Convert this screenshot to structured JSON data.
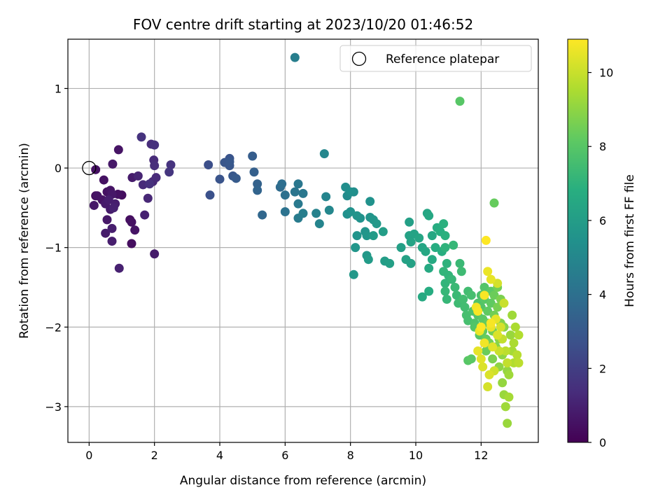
{
  "chart_data": {
    "type": "scatter",
    "title": "FOV centre drift starting at 2023/10/20 01:46:52",
    "xlabel": "Angular distance from reference (arcmin)",
    "ylabel": "Rotation from reference (arcmin)",
    "xlim": [
      -0.65,
      13.75
    ],
    "ylim": [
      -3.45,
      1.62
    ],
    "xticks": [
      0,
      2,
      4,
      6,
      8,
      10,
      12
    ],
    "yticks": [
      -3,
      -2,
      -1,
      0,
      1
    ],
    "grid": true,
    "legend": {
      "placement": "top-right",
      "entries": [
        "Reference platepar"
      ]
    },
    "reference_point": {
      "x": 0,
      "y": 0,
      "label": "Reference platepar"
    },
    "colorbar": {
      "label": "Hours from first FF file",
      "range": [
        0,
        10.9
      ],
      "ticks": [
        0,
        2,
        4,
        6,
        8,
        10
      ],
      "colormap": "viridis"
    },
    "points": [
      {
        "x": 0.2,
        "y": -0.02,
        "c": 0.5
      },
      {
        "x": 0.2,
        "y": -0.35,
        "c": 0.4
      },
      {
        "x": 0.25,
        "y": -0.35,
        "c": 0.6
      },
      {
        "x": 0.15,
        "y": -0.47,
        "c": 0.7
      },
      {
        "x": 0.45,
        "y": -0.15,
        "c": 0.5
      },
      {
        "x": 0.4,
        "y": -0.4,
        "c": 0.6
      },
      {
        "x": 0.55,
        "y": -0.3,
        "c": 0.5
      },
      {
        "x": 0.5,
        "y": -0.45,
        "c": 0.8
      },
      {
        "x": 0.6,
        "y": -0.4,
        "c": 0.9
      },
      {
        "x": 0.7,
        "y": -0.33,
        "c": 0.7
      },
      {
        "x": 0.65,
        "y": -0.52,
        "c": 0.8
      },
      {
        "x": 0.75,
        "y": -0.5,
        "c": 1.0
      },
      {
        "x": 0.8,
        "y": -0.45,
        "c": 0.9
      },
      {
        "x": 0.55,
        "y": -0.65,
        "c": 0.7
      },
      {
        "x": 0.5,
        "y": -0.82,
        "c": 0.8
      },
      {
        "x": 0.7,
        "y": -0.76,
        "c": 0.9
      },
      {
        "x": 0.7,
        "y": -0.92,
        "c": 0.9
      },
      {
        "x": 0.65,
        "y": -0.28,
        "c": 0.6
      },
      {
        "x": 0.72,
        "y": 0.05,
        "c": 0.7
      },
      {
        "x": 0.9,
        "y": 0.23,
        "c": 0.6
      },
      {
        "x": 0.88,
        "y": -0.33,
        "c": 0.5
      },
      {
        "x": 1.0,
        "y": -0.34,
        "c": 0.4
      },
      {
        "x": 0.92,
        "y": -1.26,
        "c": 1.0
      },
      {
        "x": 1.25,
        "y": -0.65,
        "c": 0.4
      },
      {
        "x": 1.3,
        "y": -0.68,
        "c": 0.5
      },
      {
        "x": 1.3,
        "y": -0.95,
        "c": 0.4
      },
      {
        "x": 1.4,
        "y": -0.78,
        "c": 0.6
      },
      {
        "x": 1.32,
        "y": -0.12,
        "c": 0.8
      },
      {
        "x": 1.5,
        "y": -0.1,
        "c": 1.1
      },
      {
        "x": 1.6,
        "y": 0.39,
        "c": 1.6
      },
      {
        "x": 1.65,
        "y": -0.21,
        "c": 1.3
      },
      {
        "x": 1.7,
        "y": -0.59,
        "c": 1.0
      },
      {
        "x": 1.8,
        "y": -0.38,
        "c": 1.2
      },
      {
        "x": 1.85,
        "y": -0.2,
        "c": 1.5
      },
      {
        "x": 1.9,
        "y": 0.3,
        "c": 1.4
      },
      {
        "x": 2.0,
        "y": 0.29,
        "c": 1.5
      },
      {
        "x": 1.98,
        "y": 0.1,
        "c": 1.3
      },
      {
        "x": 2.0,
        "y": 0.03,
        "c": 1.4
      },
      {
        "x": 1.95,
        "y": -0.17,
        "c": 1.2
      },
      {
        "x": 2.05,
        "y": -0.12,
        "c": 1.3
      },
      {
        "x": 2.0,
        "y": -1.08,
        "c": 0.8
      },
      {
        "x": 2.45,
        "y": -0.05,
        "c": 1.7
      },
      {
        "x": 2.5,
        "y": 0.04,
        "c": 1.6
      },
      {
        "x": 3.65,
        "y": 0.04,
        "c": 2.6
      },
      {
        "x": 3.7,
        "y": -0.34,
        "c": 2.7
      },
      {
        "x": 4.0,
        "y": -0.14,
        "c": 2.8
      },
      {
        "x": 4.15,
        "y": 0.07,
        "c": 2.9
      },
      {
        "x": 4.3,
        "y": 0.12,
        "c": 2.8
      },
      {
        "x": 4.3,
        "y": 0.08,
        "c": 3.0
      },
      {
        "x": 4.3,
        "y": 0.03,
        "c": 2.9
      },
      {
        "x": 4.4,
        "y": -0.1,
        "c": 3.0
      },
      {
        "x": 4.5,
        "y": -0.13,
        "c": 3.1
      },
      {
        "x": 5.0,
        "y": 0.15,
        "c": 3.2
      },
      {
        "x": 5.05,
        "y": -0.05,
        "c": 3.3
      },
      {
        "x": 5.15,
        "y": -0.2,
        "c": 3.4
      },
      {
        "x": 5.15,
        "y": -0.28,
        "c": 3.5
      },
      {
        "x": 5.3,
        "y": -0.59,
        "c": 3.6
      },
      {
        "x": 5.9,
        "y": -0.2,
        "c": 3.9
      },
      {
        "x": 5.85,
        "y": -0.24,
        "c": 3.8
      },
      {
        "x": 6.0,
        "y": -0.34,
        "c": 4.0
      },
      {
        "x": 6.0,
        "y": -0.55,
        "c": 4.1
      },
      {
        "x": 6.3,
        "y": 1.39,
        "c": 4.6
      },
      {
        "x": 6.3,
        "y": -0.3,
        "c": 4.2
      },
      {
        "x": 6.4,
        "y": -0.2,
        "c": 4.3
      },
      {
        "x": 6.4,
        "y": -0.45,
        "c": 4.4
      },
      {
        "x": 6.4,
        "y": -0.63,
        "c": 4.5
      },
      {
        "x": 6.55,
        "y": -0.32,
        "c": 4.3
      },
      {
        "x": 6.55,
        "y": -0.57,
        "c": 4.6
      },
      {
        "x": 6.95,
        "y": -0.57,
        "c": 4.8
      },
      {
        "x": 7.05,
        "y": -0.7,
        "c": 4.9
      },
      {
        "x": 7.2,
        "y": 0.18,
        "c": 5.0
      },
      {
        "x": 7.25,
        "y": -0.36,
        "c": 4.9
      },
      {
        "x": 7.35,
        "y": -0.53,
        "c": 5.0
      },
      {
        "x": 7.85,
        "y": -0.24,
        "c": 5.3
      },
      {
        "x": 7.9,
        "y": -0.35,
        "c": 5.2
      },
      {
        "x": 8.0,
        "y": -0.3,
        "c": 5.4
      },
      {
        "x": 8.1,
        "y": -0.3,
        "c": 5.3
      },
      {
        "x": 7.9,
        "y": -0.58,
        "c": 5.4
      },
      {
        "x": 8.0,
        "y": -0.55,
        "c": 5.5
      },
      {
        "x": 8.2,
        "y": -0.6,
        "c": 5.6
      },
      {
        "x": 8.3,
        "y": -0.63,
        "c": 5.5
      },
      {
        "x": 8.2,
        "y": -0.85,
        "c": 5.6
      },
      {
        "x": 8.15,
        "y": -1.0,
        "c": 5.7
      },
      {
        "x": 8.1,
        "y": -1.34,
        "c": 5.8
      },
      {
        "x": 8.45,
        "y": -0.8,
        "c": 5.6
      },
      {
        "x": 8.5,
        "y": -0.85,
        "c": 5.7
      },
      {
        "x": 8.5,
        "y": -1.1,
        "c": 5.8
      },
      {
        "x": 8.55,
        "y": -1.15,
        "c": 5.9
      },
      {
        "x": 8.6,
        "y": -0.42,
        "c": 5.5
      },
      {
        "x": 8.6,
        "y": -0.62,
        "c": 5.6
      },
      {
        "x": 8.7,
        "y": -0.65,
        "c": 5.7
      },
      {
        "x": 8.8,
        "y": -0.7,
        "c": 5.8
      },
      {
        "x": 8.7,
        "y": -0.85,
        "c": 5.9
      },
      {
        "x": 9.0,
        "y": -0.8,
        "c": 6.0
      },
      {
        "x": 9.05,
        "y": -1.17,
        "c": 6.0
      },
      {
        "x": 9.2,
        "y": -1.2,
        "c": 6.1
      },
      {
        "x": 9.55,
        "y": -1.0,
        "c": 6.1
      },
      {
        "x": 9.7,
        "y": -1.15,
        "c": 6.2
      },
      {
        "x": 9.85,
        "y": -1.2,
        "c": 6.2
      },
      {
        "x": 9.8,
        "y": -0.68,
        "c": 6.1
      },
      {
        "x": 9.8,
        "y": -0.85,
        "c": 6.2
      },
      {
        "x": 9.85,
        "y": -0.93,
        "c": 6.3
      },
      {
        "x": 9.95,
        "y": -0.83,
        "c": 6.3
      },
      {
        "x": 10.1,
        "y": -0.88,
        "c": 6.4
      },
      {
        "x": 10.2,
        "y": -1.0,
        "c": 6.4
      },
      {
        "x": 10.3,
        "y": -1.05,
        "c": 6.5
      },
      {
        "x": 10.35,
        "y": -0.57,
        "c": 6.4
      },
      {
        "x": 10.4,
        "y": -0.6,
        "c": 6.5
      },
      {
        "x": 10.5,
        "y": -0.85,
        "c": 6.5
      },
      {
        "x": 10.4,
        "y": -1.26,
        "c": 6.6
      },
      {
        "x": 10.2,
        "y": -1.62,
        "c": 6.6
      },
      {
        "x": 10.4,
        "y": -1.55,
        "c": 6.7
      },
      {
        "x": 10.5,
        "y": -1.15,
        "c": 6.6
      },
      {
        "x": 10.6,
        "y": -1.0,
        "c": 6.7
      },
      {
        "x": 10.65,
        "y": -0.75,
        "c": 6.7
      },
      {
        "x": 10.75,
        "y": -0.8,
        "c": 6.8
      },
      {
        "x": 10.8,
        "y": -1.05,
        "c": 6.8
      },
      {
        "x": 10.85,
        "y": -0.7,
        "c": 6.9
      },
      {
        "x": 10.9,
        "y": -0.85,
        "c": 6.9
      },
      {
        "x": 10.9,
        "y": -1.0,
        "c": 7.0
      },
      {
        "x": 10.95,
        "y": -1.2,
        "c": 7.0
      },
      {
        "x": 10.85,
        "y": -1.3,
        "c": 7.1
      },
      {
        "x": 10.9,
        "y": -1.45,
        "c": 7.1
      },
      {
        "x": 10.9,
        "y": -1.55,
        "c": 7.2
      },
      {
        "x": 10.95,
        "y": -1.65,
        "c": 7.2
      },
      {
        "x": 11.0,
        "y": -1.35,
        "c": 7.1
      },
      {
        "x": 11.1,
        "y": -1.4,
        "c": 7.2
      },
      {
        "x": 11.15,
        "y": -0.97,
        "c": 7.2
      },
      {
        "x": 11.2,
        "y": -1.5,
        "c": 7.3
      },
      {
        "x": 11.25,
        "y": -1.6,
        "c": 7.3
      },
      {
        "x": 11.3,
        "y": -1.7,
        "c": 7.4
      },
      {
        "x": 11.35,
        "y": -1.2,
        "c": 7.3
      },
      {
        "x": 11.4,
        "y": -1.3,
        "c": 7.4
      },
      {
        "x": 11.45,
        "y": -1.65,
        "c": 7.5
      },
      {
        "x": 11.5,
        "y": -1.75,
        "c": 7.5
      },
      {
        "x": 11.55,
        "y": -1.85,
        "c": 7.6
      },
      {
        "x": 11.6,
        "y": -1.55,
        "c": 7.5
      },
      {
        "x": 11.6,
        "y": -1.92,
        "c": 7.6
      },
      {
        "x": 11.35,
        "y": 0.84,
        "c": 8.0
      },
      {
        "x": 11.6,
        "y": -2.42,
        "c": 8.0
      },
      {
        "x": 11.7,
        "y": -2.4,
        "c": 8.1
      },
      {
        "x": 11.7,
        "y": -1.6,
        "c": 7.6
      },
      {
        "x": 11.75,
        "y": -1.8,
        "c": 7.7
      },
      {
        "x": 11.8,
        "y": -1.95,
        "c": 7.8
      },
      {
        "x": 11.8,
        "y": -2.0,
        "c": 7.9
      },
      {
        "x": 11.9,
        "y": -1.7,
        "c": 7.8
      },
      {
        "x": 11.9,
        "y": -1.85,
        "c": 7.9
      },
      {
        "x": 11.95,
        "y": -2.1,
        "c": 8.0
      },
      {
        "x": 12.0,
        "y": -1.6,
        "c": 7.7
      },
      {
        "x": 12.0,
        "y": -1.75,
        "c": 7.9
      },
      {
        "x": 12.05,
        "y": -1.9,
        "c": 8.1
      },
      {
        "x": 12.05,
        "y": -2.05,
        "c": 8.2
      },
      {
        "x": 12.1,
        "y": -1.5,
        "c": 7.9
      },
      {
        "x": 12.1,
        "y": -1.65,
        "c": 8.0
      },
      {
        "x": 12.15,
        "y": -2.15,
        "c": 8.3
      },
      {
        "x": 12.15,
        "y": -2.3,
        "c": 8.4
      },
      {
        "x": 12.2,
        "y": -1.8,
        "c": 8.2
      },
      {
        "x": 12.2,
        "y": -1.95,
        "c": 8.3
      },
      {
        "x": 12.25,
        "y": -2.2,
        "c": 8.5
      },
      {
        "x": 12.3,
        "y": -1.55,
        "c": 8.1
      },
      {
        "x": 12.3,
        "y": -1.7,
        "c": 8.2
      },
      {
        "x": 12.35,
        "y": -2.05,
        "c": 8.6
      },
      {
        "x": 12.35,
        "y": -2.4,
        "c": 8.7
      },
      {
        "x": 12.4,
        "y": -1.6,
        "c": 8.4
      },
      {
        "x": 12.4,
        "y": -1.85,
        "c": 8.5
      },
      {
        "x": 12.45,
        "y": -2.25,
        "c": 8.8
      },
      {
        "x": 12.4,
        "y": -0.44,
        "c": 8.3
      },
      {
        "x": 12.5,
        "y": -1.5,
        "c": 8.5
      },
      {
        "x": 12.5,
        "y": -1.75,
        "c": 8.6
      },
      {
        "x": 12.55,
        "y": -2.15,
        "c": 8.9
      },
      {
        "x": 12.55,
        "y": -2.5,
        "c": 9.0
      },
      {
        "x": 12.6,
        "y": -1.65,
        "c": 8.7
      },
      {
        "x": 12.6,
        "y": -1.95,
        "c": 8.8
      },
      {
        "x": 12.65,
        "y": -2.35,
        "c": 9.0
      },
      {
        "x": 12.65,
        "y": -2.7,
        "c": 9.1
      },
      {
        "x": 12.7,
        "y": -2.0,
        "c": 8.9
      },
      {
        "x": 12.7,
        "y": -2.85,
        "c": 9.2
      },
      {
        "x": 12.75,
        "y": -3.0,
        "c": 9.3
      },
      {
        "x": 12.8,
        "y": -3.21,
        "c": 9.2
      },
      {
        "x": 12.8,
        "y": -2.55,
        "c": 9.1
      },
      {
        "x": 12.85,
        "y": -2.6,
        "c": 9.3
      },
      {
        "x": 12.85,
        "y": -2.88,
        "c": 9.4
      },
      {
        "x": 12.9,
        "y": -2.1,
        "c": 9.2
      },
      {
        "x": 12.95,
        "y": -1.85,
        "c": 9.3
      },
      {
        "x": 12.95,
        "y": -2.3,
        "c": 9.4
      },
      {
        "x": 13.0,
        "y": -2.2,
        "c": 9.5
      },
      {
        "x": 13.0,
        "y": -2.45,
        "c": 9.6
      },
      {
        "x": 13.05,
        "y": -2.0,
        "c": 9.5
      },
      {
        "x": 13.1,
        "y": -2.35,
        "c": 9.7
      },
      {
        "x": 13.15,
        "y": -2.45,
        "c": 9.8
      },
      {
        "x": 13.15,
        "y": -2.1,
        "c": 9.6
      },
      {
        "x": 11.85,
        "y": -1.75,
        "c": 10.7
      },
      {
        "x": 11.9,
        "y": -1.8,
        "c": 10.8
      },
      {
        "x": 11.95,
        "y": -2.05,
        "c": 10.6
      },
      {
        "x": 11.9,
        "y": -2.3,
        "c": 10.5
      },
      {
        "x": 12.0,
        "y": -2.4,
        "c": 10.4
      },
      {
        "x": 12.05,
        "y": -2.5,
        "c": 10.3
      },
      {
        "x": 12.1,
        "y": -2.2,
        "c": 10.7
      },
      {
        "x": 12.15,
        "y": -0.91,
        "c": 10.9
      },
      {
        "x": 12.2,
        "y": -1.3,
        "c": 10.6
      },
      {
        "x": 12.2,
        "y": -2.75,
        "c": 10.2
      },
      {
        "x": 12.25,
        "y": -2.6,
        "c": 10.3
      },
      {
        "x": 12.3,
        "y": -1.4,
        "c": 10.5
      },
      {
        "x": 12.3,
        "y": -2.0,
        "c": 10.6
      },
      {
        "x": 12.35,
        "y": -2.25,
        "c": 10.4
      },
      {
        "x": 12.4,
        "y": -2.55,
        "c": 10.1
      },
      {
        "x": 12.45,
        "y": -1.9,
        "c": 10.5
      },
      {
        "x": 12.5,
        "y": -2.1,
        "c": 10.3
      },
      {
        "x": 12.5,
        "y": -1.45,
        "c": 10.2
      },
      {
        "x": 12.55,
        "y": -2.3,
        "c": 10.0
      },
      {
        "x": 12.6,
        "y": -2.0,
        "c": 10.2
      },
      {
        "x": 12.65,
        "y": -2.15,
        "c": 9.9
      },
      {
        "x": 12.7,
        "y": -1.7,
        "c": 10.0
      },
      {
        "x": 12.75,
        "y": -2.3,
        "c": 9.8
      },
      {
        "x": 12.8,
        "y": -2.45,
        "c": 9.9
      },
      {
        "x": 12.3,
        "y": -1.95,
        "c": 10.8
      },
      {
        "x": 12.0,
        "y": -2.0,
        "c": 10.9
      },
      {
        "x": 12.1,
        "y": -1.6,
        "c": 10.8
      }
    ]
  }
}
